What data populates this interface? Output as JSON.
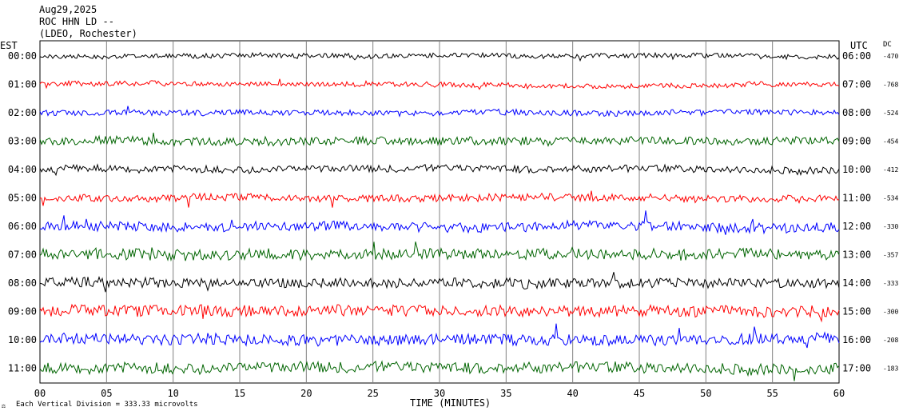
{
  "header": {
    "date": "Aug29,2025",
    "station": "ROC HHN LD --",
    "network": "(LDEO, Rochester)"
  },
  "labels": {
    "left_tz": "EST",
    "right_tz": "UTC",
    "dc": "DC",
    "xlabel": "TIME (MINUTES)",
    "footer_mark": "⚖",
    "footer": "Each Vertical Division =  333.33 microvolts"
  },
  "chart_data": {
    "type": "line",
    "title": "ROC HHN LD -- (LDEO, Rochester) Aug29,2025",
    "xlabel": "TIME (MINUTES)",
    "x_ticks": [
      "00",
      "05",
      "10",
      "15",
      "20",
      "25",
      "30",
      "35",
      "40",
      "45",
      "50",
      "55",
      "60"
    ],
    "xlim": [
      0,
      60
    ],
    "grid": "vertical every 5 minutes",
    "trace_colors": [
      "#000000",
      "#ff0000",
      "#0000ff",
      "#006400"
    ],
    "series": [
      {
        "est": "00:00",
        "utc": "06:00",
        "dc": "-470"
      },
      {
        "est": "01:00",
        "utc": "07:00",
        "dc": "-768"
      },
      {
        "est": "02:00",
        "utc": "08:00",
        "dc": "-524"
      },
      {
        "est": "03:00",
        "utc": "09:00",
        "dc": "-454"
      },
      {
        "est": "04:00",
        "utc": "10:00",
        "dc": "-412"
      },
      {
        "est": "05:00",
        "utc": "11:00",
        "dc": "-534"
      },
      {
        "est": "06:00",
        "utc": "12:00",
        "dc": "-330"
      },
      {
        "est": "07:00",
        "utc": "13:00",
        "dc": "-357"
      },
      {
        "est": "08:00",
        "utc": "14:00",
        "dc": "-333"
      },
      {
        "est": "09:00",
        "utc": "15:00",
        "dc": "-300"
      },
      {
        "est": "10:00",
        "utc": "16:00",
        "dc": "-208"
      },
      {
        "est": "11:00",
        "utc": "17:00",
        "dc": "-183"
      }
    ]
  }
}
